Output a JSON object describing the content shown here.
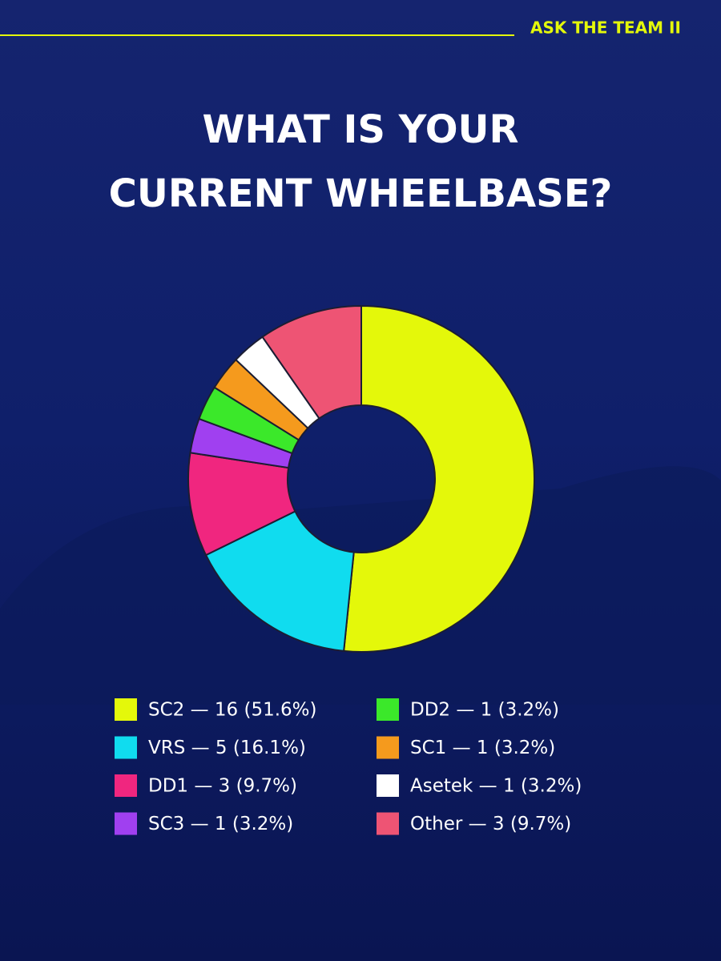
{
  "header": {
    "tag": "ASK THE TEAM II"
  },
  "chart_data": {
    "type": "donut",
    "title": "WHAT IS YOUR\nCURRENT WHEELBASE?",
    "categories": [
      "SC2 — 16 (51.6%)",
      "VRS — 5 (16.1%)",
      "DD1 — 3 (9.7%)",
      "SC3 — 1 (3.2%)",
      "DD2 — 1 (3.2%)",
      "SC1 — 1 (3.2%)",
      "Asetek — 1 (3.2%)",
      "Other — 3 (9.7%)"
    ],
    "values": [
      16,
      5,
      3,
      1,
      1,
      1,
      1,
      3
    ],
    "colors": [
      "#e4f80a",
      "#10dcef",
      "#f0267f",
      "#a040f0",
      "#3be82a",
      "#f59a1d",
      "#ffffff",
      "#ee5474"
    ],
    "legend": "bottom"
  }
}
